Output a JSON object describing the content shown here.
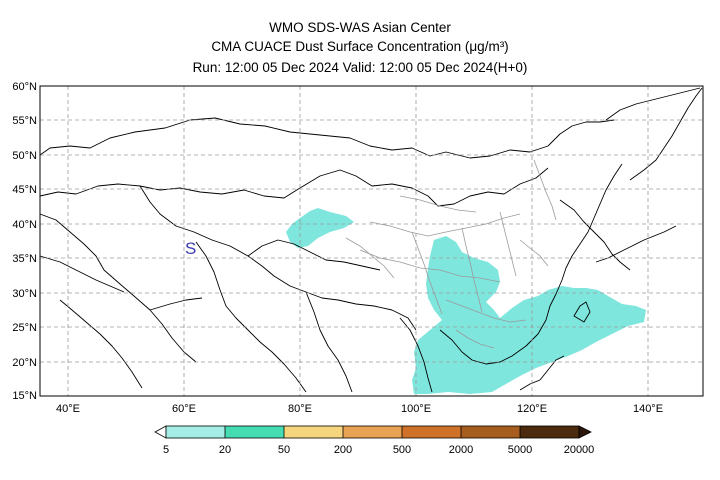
{
  "header": {
    "line1": "WMO SDS-WAS Asian Center",
    "line2": "CMA CUACE Dust Surface Concentration (μg/m³)",
    "line3": "Run: 12:00 05 Dec 2024    Valid: 12:00 05 Dec 2024(H+0)"
  },
  "map": {
    "lat_ticks": [
      "60°N",
      "55°N",
      "50°N",
      "45°N",
      "40°N",
      "35°N",
      "30°N",
      "25°N",
      "20°N",
      "15°N"
    ],
    "lon_ticks": [
      "40°E",
      "60°E",
      "80°E",
      "100°E",
      "120°E",
      "140°E"
    ],
    "extent": {
      "lon_min": 35,
      "lon_max": 150,
      "lat_min": 15,
      "lat_max": 60
    },
    "marker": "S",
    "dust_color": "#7fe6de"
  },
  "colorbar": {
    "labels": [
      "5",
      "20",
      "50",
      "200",
      "500",
      "2000",
      "5000",
      "20000"
    ],
    "colors": [
      "#a6ece6",
      "#44dcb0",
      "#f5d67e",
      "#e9a253",
      "#d07129",
      "#a65d1e",
      "#7a4314",
      "#4b2a0e",
      "#2c170a"
    ]
  }
}
